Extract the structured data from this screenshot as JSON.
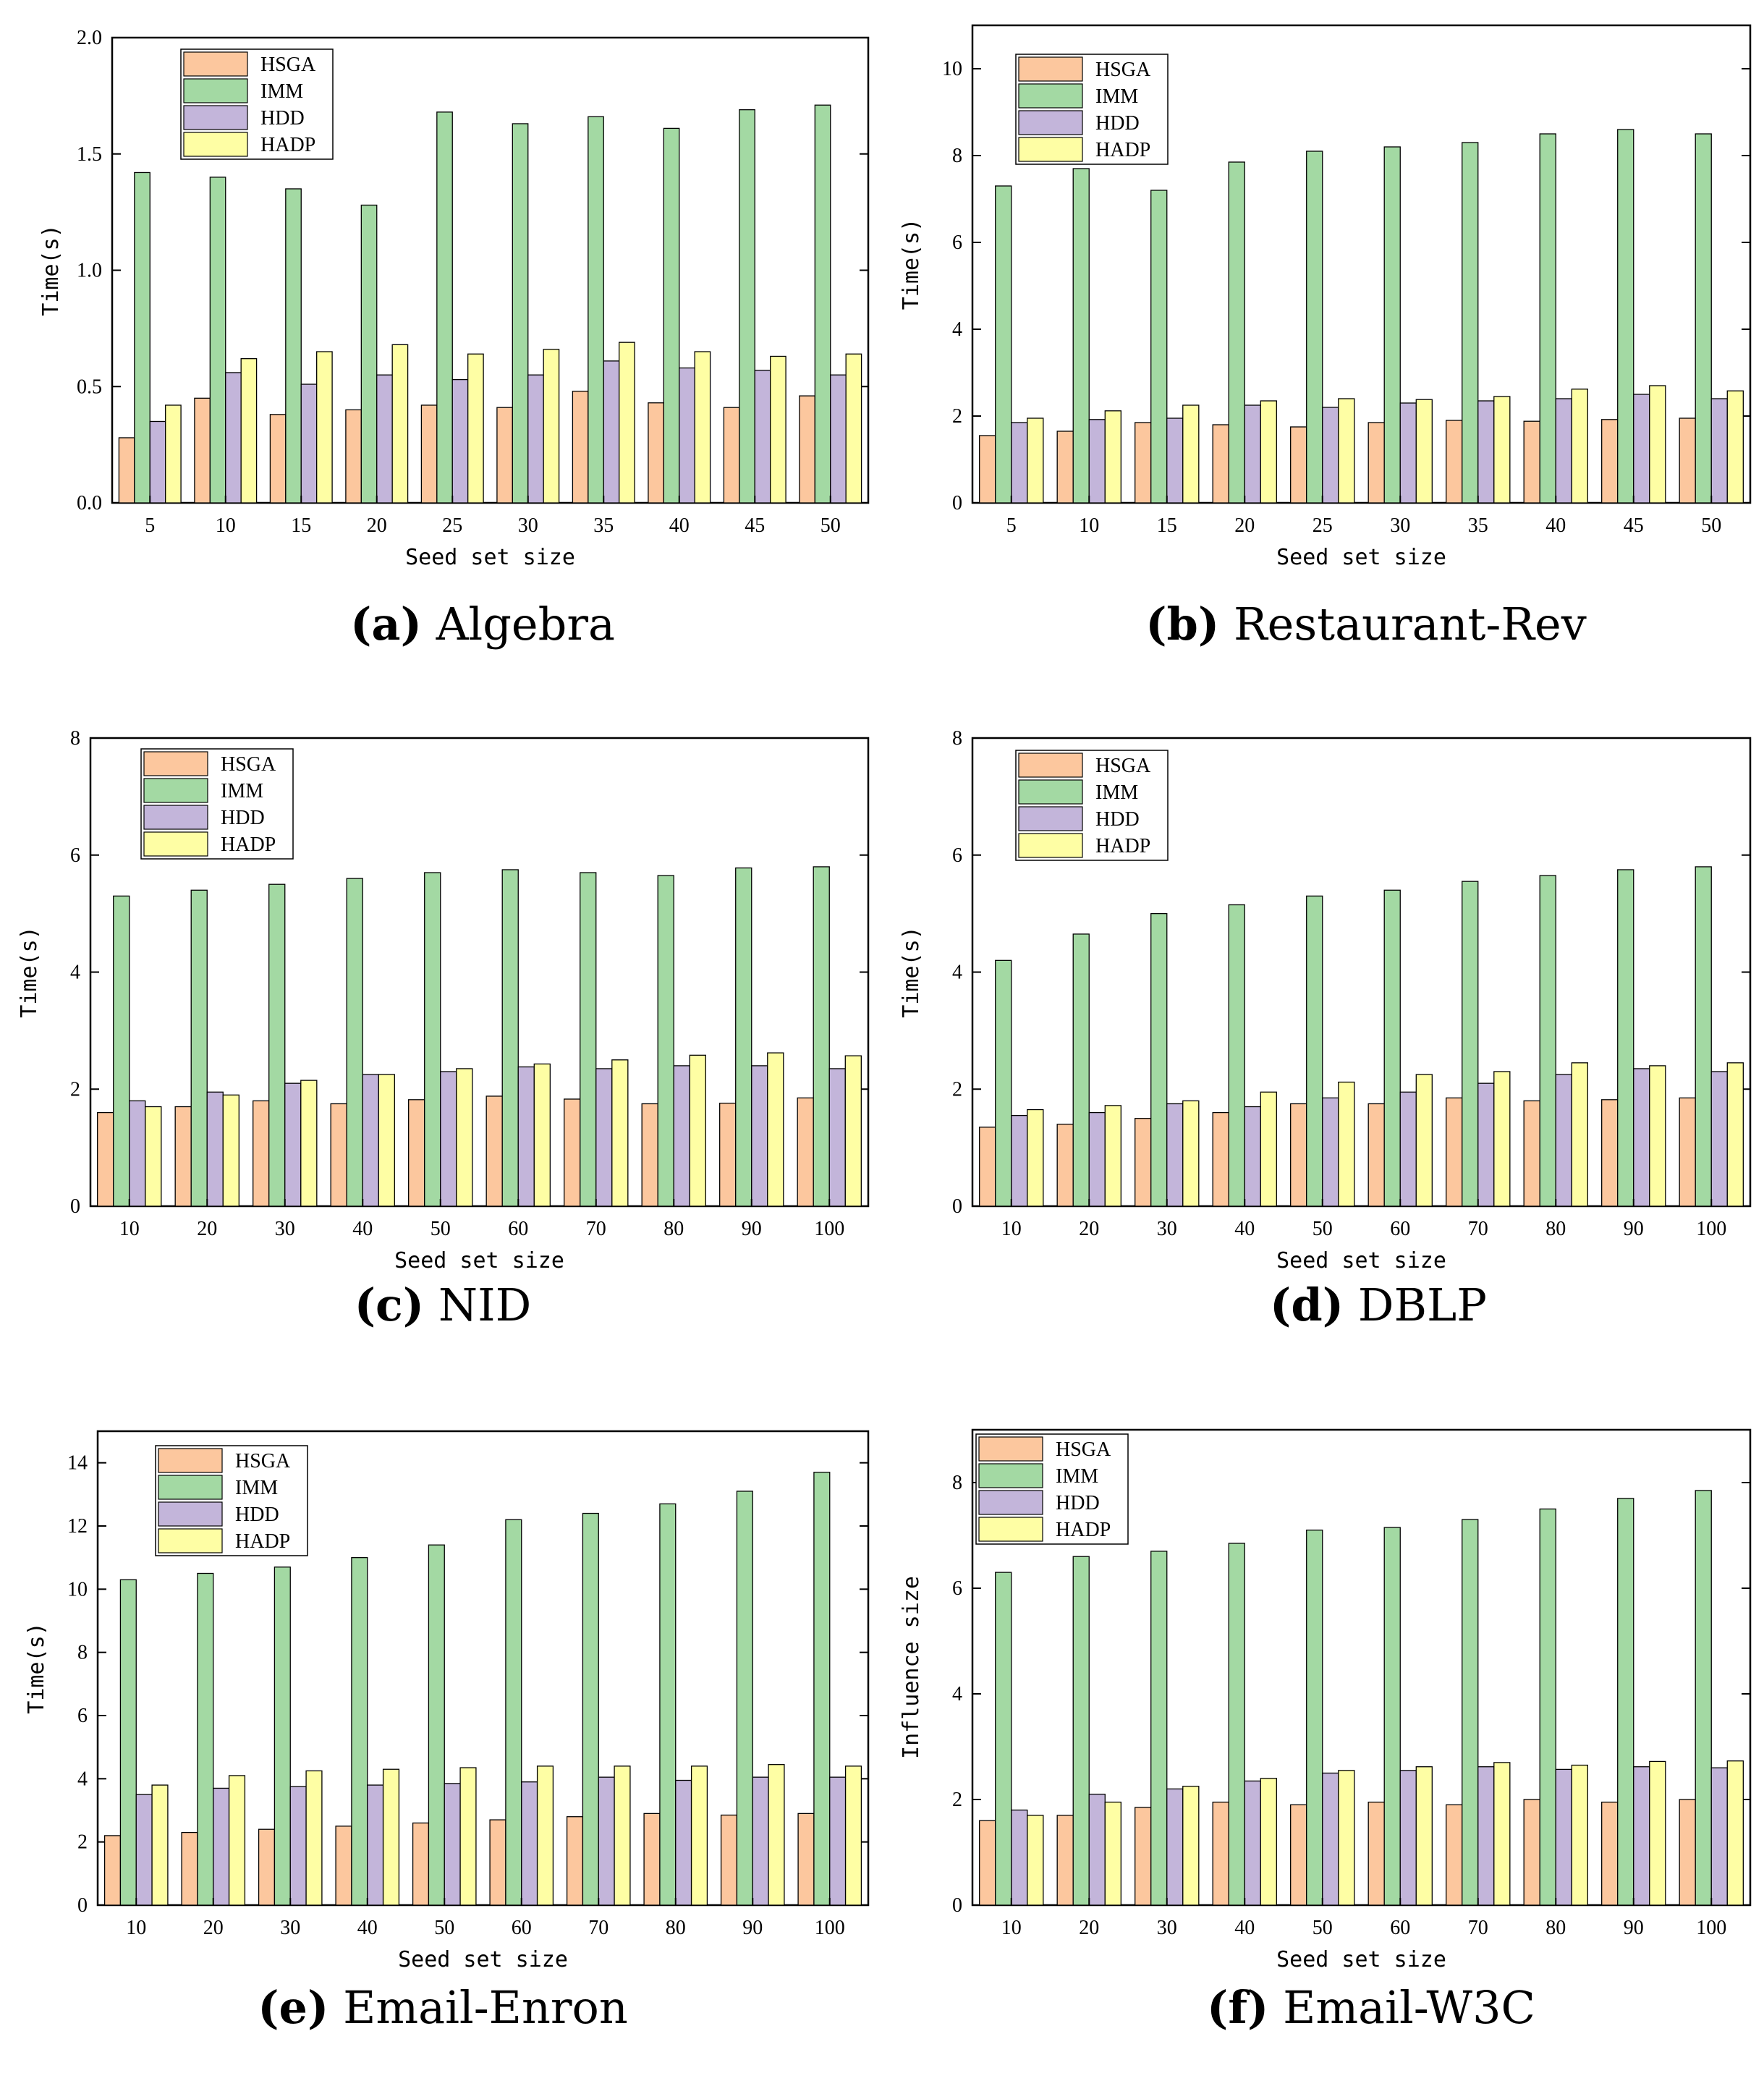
{
  "colors": {
    "HSGA": "#fcc79e",
    "IMM": "#a3d9a3",
    "HDD": "#c3b5da",
    "HADP": "#fefea4"
  },
  "panels": [
    {
      "id": "a",
      "caption": {
        "letter": "(a)",
        "title": "Algebra"
      },
      "chart_data": {
        "type": "bar",
        "title": "Algebra",
        "xlabel": "Seed set size",
        "ylabel": "Time(s)",
        "ylim": [
          0,
          2.0
        ],
        "yticks": [
          "0.0",
          "0.5",
          "1.0",
          "1.5",
          "2.0"
        ],
        "categories": [
          "5",
          "10",
          "15",
          "20",
          "25",
          "30",
          "35",
          "40",
          "45",
          "50"
        ],
        "series": [
          {
            "name": "HSGA",
            "values": [
              0.28,
              0.45,
              0.38,
              0.4,
              0.42,
              0.41,
              0.48,
              0.43,
              0.41,
              0.46
            ]
          },
          {
            "name": "IMM",
            "values": [
              1.42,
              1.4,
              1.35,
              1.28,
              1.68,
              1.63,
              1.66,
              1.61,
              1.69,
              1.71
            ]
          },
          {
            "name": "HDD",
            "values": [
              0.35,
              0.56,
              0.51,
              0.55,
              0.53,
              0.55,
              0.61,
              0.58,
              0.57,
              0.55
            ]
          },
          {
            "name": "HADP",
            "values": [
              0.42,
              0.62,
              0.65,
              0.68,
              0.64,
              0.66,
              0.69,
              0.65,
              0.63,
              0.64
            ]
          }
        ],
        "legend": "top-left"
      }
    },
    {
      "id": "b",
      "caption": {
        "letter": "(b)",
        "title": "Restaurant-Rev"
      },
      "chart_data": {
        "type": "bar",
        "title": "Restaurant-Rev",
        "xlabel": "Seed set size",
        "ylabel": "Time(s)",
        "ylim": [
          0,
          11
        ],
        "yticks": [
          "0",
          "2",
          "4",
          "6",
          "8",
          "10"
        ],
        "categories": [
          "5",
          "10",
          "15",
          "20",
          "25",
          "30",
          "35",
          "40",
          "45",
          "50"
        ],
        "series": [
          {
            "name": "HSGA",
            "values": [
              1.55,
              1.65,
              1.85,
              1.8,
              1.75,
              1.85,
              1.9,
              1.88,
              1.92,
              1.95
            ]
          },
          {
            "name": "IMM",
            "values": [
              7.3,
              7.7,
              7.2,
              7.85,
              8.1,
              8.2,
              8.3,
              8.5,
              8.6,
              8.5
            ]
          },
          {
            "name": "HDD",
            "values": [
              1.85,
              1.92,
              1.95,
              2.25,
              2.2,
              2.3,
              2.35,
              2.4,
              2.5,
              2.4
            ]
          },
          {
            "name": "HADP",
            "values": [
              1.95,
              2.12,
              2.25,
              2.35,
              2.4,
              2.38,
              2.45,
              2.62,
              2.7,
              2.58
            ]
          }
        ],
        "legend": "top-left"
      }
    },
    {
      "id": "c",
      "caption": {
        "letter": "(c)",
        "title": "NID"
      },
      "chart_data": {
        "type": "bar",
        "title": "NID",
        "xlabel": "Seed set size",
        "ylabel": "Time(s)",
        "ylim": [
          0,
          8
        ],
        "yticks": [
          "0",
          "2",
          "4",
          "6",
          "8"
        ],
        "categories": [
          "10",
          "20",
          "30",
          "40",
          "50",
          "60",
          "70",
          "80",
          "90",
          "100"
        ],
        "series": [
          {
            "name": "HSGA",
            "values": [
              1.6,
              1.7,
              1.8,
              1.75,
              1.82,
              1.88,
              1.83,
              1.75,
              1.76,
              1.85
            ]
          },
          {
            "name": "IMM",
            "values": [
              5.3,
              5.4,
              5.5,
              5.6,
              5.7,
              5.75,
              5.7,
              5.65,
              5.78,
              5.8
            ]
          },
          {
            "name": "HDD",
            "values": [
              1.8,
              1.95,
              2.1,
              2.25,
              2.3,
              2.38,
              2.35,
              2.4,
              2.4,
              2.35
            ]
          },
          {
            "name": "HADP",
            "values": [
              1.7,
              1.9,
              2.15,
              2.25,
              2.35,
              2.43,
              2.5,
              2.58,
              2.62,
              2.57
            ]
          }
        ],
        "legend": "top-left"
      }
    },
    {
      "id": "d",
      "caption": {
        "letter": "(d)",
        "title": "DBLP"
      },
      "chart_data": {
        "type": "bar",
        "title": "DBLP",
        "xlabel": "Seed set size",
        "ylabel": "Time(s)",
        "ylim": [
          0,
          8
        ],
        "yticks": [
          "0",
          "2",
          "4",
          "6",
          "8"
        ],
        "categories": [
          "10",
          "20",
          "30",
          "40",
          "50",
          "60",
          "70",
          "80",
          "90",
          "100"
        ],
        "series": [
          {
            "name": "HSGA",
            "values": [
              1.35,
              1.4,
              1.5,
              1.6,
              1.75,
              1.75,
              1.85,
              1.8,
              1.82,
              1.85
            ]
          },
          {
            "name": "IMM",
            "values": [
              4.2,
              4.65,
              5.0,
              5.15,
              5.3,
              5.4,
              5.55,
              5.65,
              5.75,
              5.8
            ]
          },
          {
            "name": "HDD",
            "values": [
              1.55,
              1.6,
              1.75,
              1.7,
              1.85,
              1.95,
              2.1,
              2.25,
              2.35,
              2.3
            ]
          },
          {
            "name": "HADP",
            "values": [
              1.65,
              1.72,
              1.8,
              1.95,
              2.12,
              2.25,
              2.3,
              2.45,
              2.4,
              2.45
            ]
          }
        ],
        "legend": "top-left"
      }
    },
    {
      "id": "e",
      "caption": {
        "letter": "(e)",
        "title": "Email-Enron"
      },
      "chart_data": {
        "type": "bar",
        "title": "Email-Enron",
        "xlabel": "Seed set size",
        "ylabel": "Time(s)",
        "ylim": [
          0,
          15
        ],
        "yticks": [
          "0",
          "2",
          "4",
          "6",
          "8",
          "10",
          "12",
          "14"
        ],
        "categories": [
          "10",
          "20",
          "30",
          "40",
          "50",
          "60",
          "70",
          "80",
          "90",
          "100"
        ],
        "series": [
          {
            "name": "HSGA",
            "values": [
              2.2,
              2.3,
              2.4,
              2.5,
              2.6,
              2.7,
              2.8,
              2.9,
              2.85,
              2.9
            ]
          },
          {
            "name": "IMM",
            "values": [
              10.3,
              10.5,
              10.7,
              11.0,
              11.4,
              12.2,
              12.4,
              12.7,
              13.1,
              13.7
            ]
          },
          {
            "name": "HDD",
            "values": [
              3.5,
              3.7,
              3.75,
              3.8,
              3.85,
              3.9,
              4.05,
              3.95,
              4.05,
              4.05
            ]
          },
          {
            "name": "HADP",
            "values": [
              3.8,
              4.1,
              4.25,
              4.3,
              4.35,
              4.4,
              4.4,
              4.4,
              4.45,
              4.4
            ]
          }
        ],
        "legend": "top-left"
      }
    },
    {
      "id": "f",
      "caption": {
        "letter": "(f)",
        "title": "Email-W3C"
      },
      "chart_data": {
        "type": "bar",
        "title": "Email-W3C",
        "xlabel": "Seed set size",
        "ylabel": "Influence size",
        "ylim": [
          0,
          9
        ],
        "yticks": [
          "0",
          "2",
          "4",
          "6",
          "8"
        ],
        "categories": [
          "10",
          "20",
          "30",
          "40",
          "50",
          "60",
          "70",
          "80",
          "90",
          "100"
        ],
        "series": [
          {
            "name": "HSGA",
            "values": [
              1.6,
              1.7,
              1.85,
              1.95,
              1.9,
              1.95,
              1.9,
              2.0,
              1.95,
              2.0
            ]
          },
          {
            "name": "IMM",
            "values": [
              6.3,
              6.6,
              6.7,
              6.85,
              7.1,
              7.15,
              7.3,
              7.5,
              7.7,
              7.85
            ]
          },
          {
            "name": "HDD",
            "values": [
              1.8,
              2.1,
              2.2,
              2.35,
              2.5,
              2.55,
              2.62,
              2.57,
              2.62,
              2.6
            ]
          },
          {
            "name": "HADP",
            "values": [
              1.7,
              1.95,
              2.25,
              2.4,
              2.55,
              2.62,
              2.7,
              2.65,
              2.72,
              2.73
            ]
          }
        ],
        "legend": "top-left"
      }
    }
  ]
}
